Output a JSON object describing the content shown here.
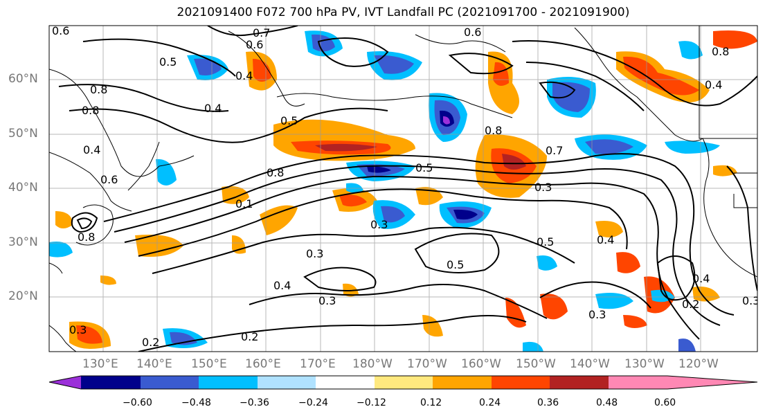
{
  "title": "2021091400 F072 700 hPa PV, IVT Landfall PC (2021091700 - 2021091900)",
  "latitude_ticks": [
    "60°N",
    "50°N",
    "40°N",
    "30°N",
    "20°N"
  ],
  "longitude_ticks": [
    "130°E",
    "140°E",
    "150°E",
    "160°E",
    "170°E",
    "180°W",
    "170°W",
    "160°W",
    "150°W",
    "140°W",
    "130°W",
    "120°W"
  ],
  "colorbar": {
    "tick_labels": [
      "−0.60",
      "−0.48",
      "−0.36",
      "−0.24",
      "−0.12",
      "0.12",
      "0.24",
      "0.36",
      "0.48",
      "0.60"
    ],
    "colors": [
      "#9b30d9",
      "#00008b",
      "#3a5bd0",
      "#00bfff",
      "#b0e2ff",
      "#ffffff",
      "#ffe97f",
      "#ffa500",
      "#ff4500",
      "#b22222",
      "#ff88b4"
    ]
  },
  "contour_labels": [
    "0.6",
    "0.7",
    "0.6",
    "0.5",
    "0.4",
    "0.8",
    "0.4",
    "0.8",
    "0.4",
    "0.6",
    "0.6",
    "0.5",
    "0.8",
    "0.1",
    "0.8",
    "0.5",
    "0.7",
    "0.3",
    "0.3",
    "0.3",
    "0.5",
    "0.4",
    "0.4",
    "0.3",
    "0.2",
    "0.2",
    "0.3",
    "0.5",
    "0.3",
    "0.2",
    "0.8",
    "0.4",
    "0.3",
    "0.8",
    "0.4"
  ]
}
